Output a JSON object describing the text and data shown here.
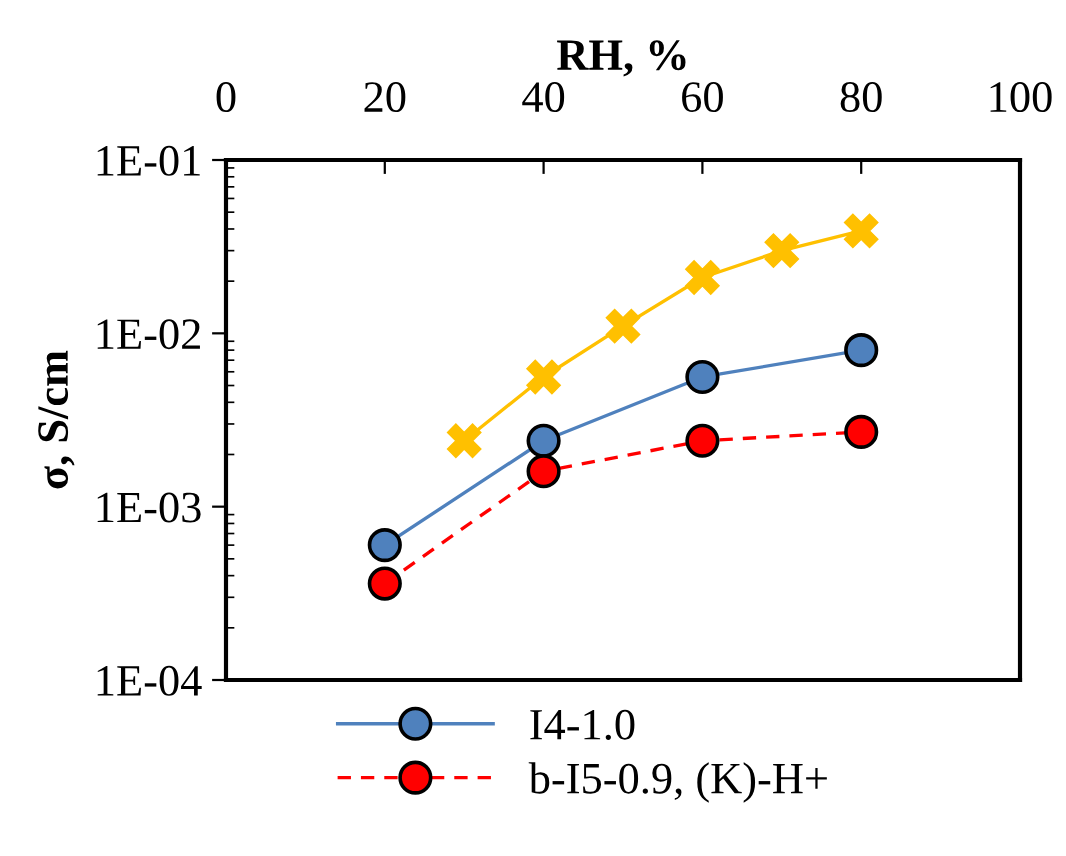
{
  "chart_data": {
    "type": "line",
    "xlabel": "RH, %",
    "ylabel": "σ, S/cm",
    "log": "y",
    "grid": false,
    "legend": "bottom",
    "marker": "circle",
    "xlim": [
      0,
      100
    ],
    "xticks": [
      0,
      20,
      40,
      60,
      80,
      100
    ],
    "ylim": [
      0.0001,
      0.1
    ],
    "yticks": [
      {
        "value": 0.0001,
        "label": "1E-04"
      },
      {
        "value": 0.001,
        "label": "1E-03"
      },
      {
        "value": 0.01,
        "label": "1E-02"
      },
      {
        "value": 0.1,
        "label": "1E-01"
      }
    ],
    "series": [
      {
        "color": "#ffc000",
        "marker": "cross",
        "x": [
          30,
          40,
          50,
          60,
          70,
          80
        ],
        "values": [
          0.0024,
          0.0056,
          0.011,
          0.021,
          0.03,
          0.039
        ]
      },
      {
        "name": "I4-1.0",
        "color": "#4f81bd",
        "x": [
          20,
          40,
          60,
          80
        ],
        "values": [
          0.0006,
          0.0024,
          0.0056,
          0.008
        ]
      },
      {
        "name": "b-I5-0.9, (K)-H+",
        "color": "#ff0000",
        "line_style": "dashed",
        "x": [
          20,
          40,
          60,
          80
        ],
        "values": [
          0.00036,
          0.0016,
          0.0024,
          0.0027
        ]
      }
    ]
  }
}
